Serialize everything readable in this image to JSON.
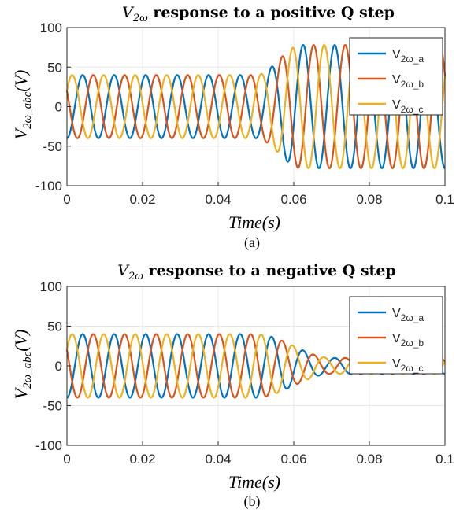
{
  "chart_data": [
    {
      "type": "line",
      "panel_label": "(a)",
      "title": {
        "var": "V",
        "var_sub": "2ω",
        "text": "response to a positive Q step"
      },
      "xlabel": "Time(s)",
      "ylabel": {
        "var": "V",
        "var_sub": "2ω_abc",
        "unit": "(V)"
      },
      "xlim": [
        0,
        0.1
      ],
      "ylim": [
        -100,
        100
      ],
      "xticks": [
        0,
        0.02,
        0.04,
        0.06,
        0.08,
        0.1
      ],
      "xtick_labels": [
        "0",
        "0.02",
        "0.04",
        "0.06",
        "0.08",
        "0.1"
      ],
      "yticks": [
        -100,
        -50,
        0,
        50,
        100
      ],
      "ytick_labels": [
        "-100",
        "-50",
        "0",
        "50",
        "100"
      ],
      "grid": true,
      "legend": "top-right",
      "waveform": {
        "frequency_hz": 120,
        "step_time_s": 0.05,
        "amplitude_before": 40,
        "amplitude_after": 78,
        "settling_time_s": 0.012
      },
      "series": [
        {
          "name": "V",
          "sub": "2ω_a",
          "color": "#0072BD",
          "phase_deg": 0
        },
        {
          "name": "V",
          "sub": "2ω_b",
          "color": "#D95319",
          "phase_deg": 120
        },
        {
          "name": "V",
          "sub": "2ω_c",
          "color": "#EDB120",
          "phase_deg": 240
        }
      ]
    },
    {
      "type": "line",
      "panel_label": "(b)",
      "title": {
        "var": "V",
        "var_sub": "2ω",
        "text": "response to a negative Q step"
      },
      "xlabel": "Time(s)",
      "ylabel": {
        "var": "V",
        "var_sub": "2ω_abc",
        "unit": "(V)"
      },
      "xlim": [
        0,
        0.1
      ],
      "ylim": [
        -100,
        100
      ],
      "xticks": [
        0,
        0.02,
        0.04,
        0.06,
        0.08,
        0.1
      ],
      "xtick_labels": [
        "0",
        "0.02",
        "0.04",
        "0.06",
        "0.08",
        "0.1"
      ],
      "yticks": [
        -100,
        -50,
        0,
        50,
        100
      ],
      "ytick_labels": [
        "-100",
        "-50",
        "0",
        "50",
        "100"
      ],
      "grid": true,
      "legend": "top-right",
      "waveform": {
        "frequency_hz": 120,
        "step_time_s": 0.05,
        "amplitude_before": 40,
        "amplitude_after": 10,
        "settling_time_s": 0.02
      },
      "series": [
        {
          "name": "V",
          "sub": "2ω_a",
          "color": "#0072BD",
          "phase_deg": 0
        },
        {
          "name": "V",
          "sub": "2ω_b",
          "color": "#D95319",
          "phase_deg": 120
        },
        {
          "name": "V",
          "sub": "2ω_c",
          "color": "#EDB120",
          "phase_deg": 240
        }
      ]
    }
  ]
}
